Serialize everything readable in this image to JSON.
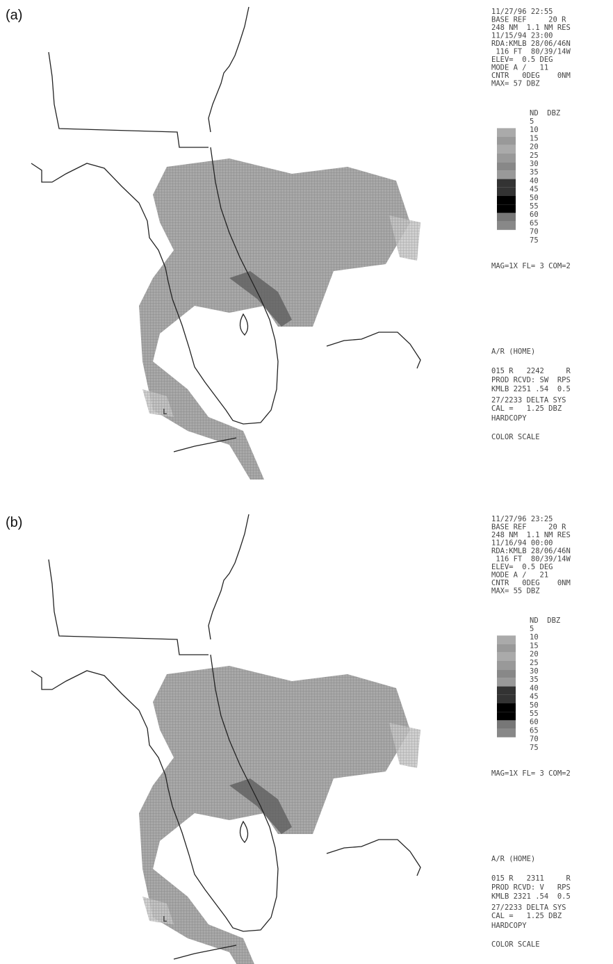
{
  "panels": [
    {
      "label": "(a)",
      "header_lines": [
        "11/27/96 22:55",
        "BASE REF     20 R",
        "248 NM  1.1 NM RES",
        "11/15/94 23:00",
        "RDA:KMLB 28/06/46N",
        " 116 FT  80/39/14W",
        "ELEV=  0.5 DEG",
        "MODE A /   11",
        "CNTR   0DEG    0NM",
        "MAX= 57 DBZ"
      ],
      "scale_header": "ND  DBZ",
      "scale_levels": [
        "5",
        "10",
        "15",
        "20",
        "25",
        "30",
        "35",
        "40",
        "45",
        "50",
        "55",
        "60",
        "65",
        "70",
        "75"
      ],
      "status": "MAG=1X FL= 3 COM=2",
      "footer_lines": [
        "A/R (HOME)",
        "015 R   2242     R",
        "PROD RCVD: SW  RPS",
        "KMLB 2251 .54  0.5",
        "27/2233 DELTA SYS",
        "CAL =   1.25 DBZ",
        "HARDCOPY",
        "COLOR SCALE"
      ],
      "marker": "L"
    },
    {
      "label": "(b)",
      "header_lines": [
        "11/27/96 23:25",
        "BASE REF     20 R",
        "248 NM  1.1 NM RES",
        "11/16/94 00:00",
        "RDA:KMLB 28/06/46N",
        " 116 FT  80/39/14W",
        "ELEV=  0.5 DEG",
        "MODE A /   21",
        "CNTR   0DEG    0NM",
        "MAX= 55 DBZ"
      ],
      "scale_header": "ND  DBZ",
      "scale_levels": [
        "5",
        "10",
        "15",
        "20",
        "25",
        "30",
        "35",
        "40",
        "45",
        "50",
        "55",
        "60",
        "65",
        "70",
        "75"
      ],
      "status": "MAG=1X FL= 3 COM=2",
      "footer_lines": [
        "A/R (HOME)",
        "015 R   2311     R",
        "PROD RCVD: V   RPS",
        "KMLB 2321 .54  0.5",
        "27/2233 DELTA SYS",
        "CAL =   1.25 DBZ",
        "HARDCOPY",
        "COLOR SCALE"
      ],
      "marker": "L"
    }
  ]
}
